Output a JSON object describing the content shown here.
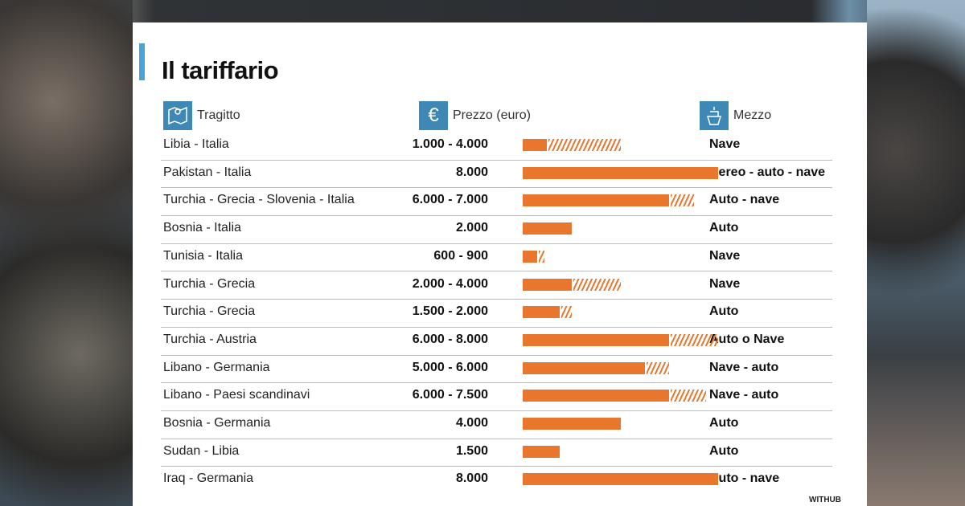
{
  "chart_data": {
    "type": "bar",
    "title": "Il tariffario",
    "columns": {
      "route": "Tragitto",
      "price": "Prezzo (euro)",
      "transport": "Mezzo"
    },
    "xlim": [
      0,
      8000
    ],
    "rows": [
      {
        "route": "Libia - Italia",
        "price": "1.000 - 4.000",
        "min": 1000,
        "max": 4000,
        "transport": "Nave"
      },
      {
        "route": "Pakistan - Italia",
        "price": "8.000",
        "min": 8000,
        "max": 8000,
        "transport": "Aereo - auto - nave"
      },
      {
        "route": "Turchia - Grecia - Slovenia - Italia",
        "price": "6.000 - 7.000",
        "min": 6000,
        "max": 7000,
        "transport": "Auto - nave"
      },
      {
        "route": "Bosnia - Italia",
        "price": "2.000",
        "min": 2000,
        "max": 2000,
        "transport": "Auto"
      },
      {
        "route": "Tunisia - Italia",
        "price": "600 - 900",
        "min": 600,
        "max": 900,
        "transport": "Nave"
      },
      {
        "route": "Turchia - Grecia",
        "price": "2.000 - 4.000",
        "min": 2000,
        "max": 4000,
        "transport": "Nave"
      },
      {
        "route": "Turchia - Grecia",
        "price": "1.500 - 2.000",
        "min": 1500,
        "max": 2000,
        "transport": "Auto"
      },
      {
        "route": "Turchia - Austria",
        "price": "6.000 - 8.000",
        "min": 6000,
        "max": 8000,
        "transport": "Auto o Nave"
      },
      {
        "route": "Libano - Germania",
        "price": "5.000 - 6.000",
        "min": 5000,
        "max": 6000,
        "transport": "Nave - auto"
      },
      {
        "route": "Libano - Paesi scandinavi",
        "price": "6.000 - 7.500",
        "min": 6000,
        "max": 7500,
        "transport": "Nave - auto"
      },
      {
        "route": "Bosnia - Germania",
        "price": "4.000",
        "min": 4000,
        "max": 4000,
        "transport": "Auto"
      },
      {
        "route": "Sudan - Libia",
        "price": "1.500",
        "min": 1500,
        "max": 1500,
        "transport": "Auto"
      },
      {
        "route": "Iraq - Germania",
        "price": "8.000",
        "min": 8000,
        "max": 8000,
        "transport": "Auto - nave"
      }
    ],
    "colors": {
      "bar": "#e8762d",
      "accent": "#4aa3d8",
      "icon_bg": "#3d88b5"
    },
    "icons": {
      "route": "map-icon",
      "price": "euro-icon",
      "transport": "ship-icon"
    },
    "source": "WITHUB"
  }
}
